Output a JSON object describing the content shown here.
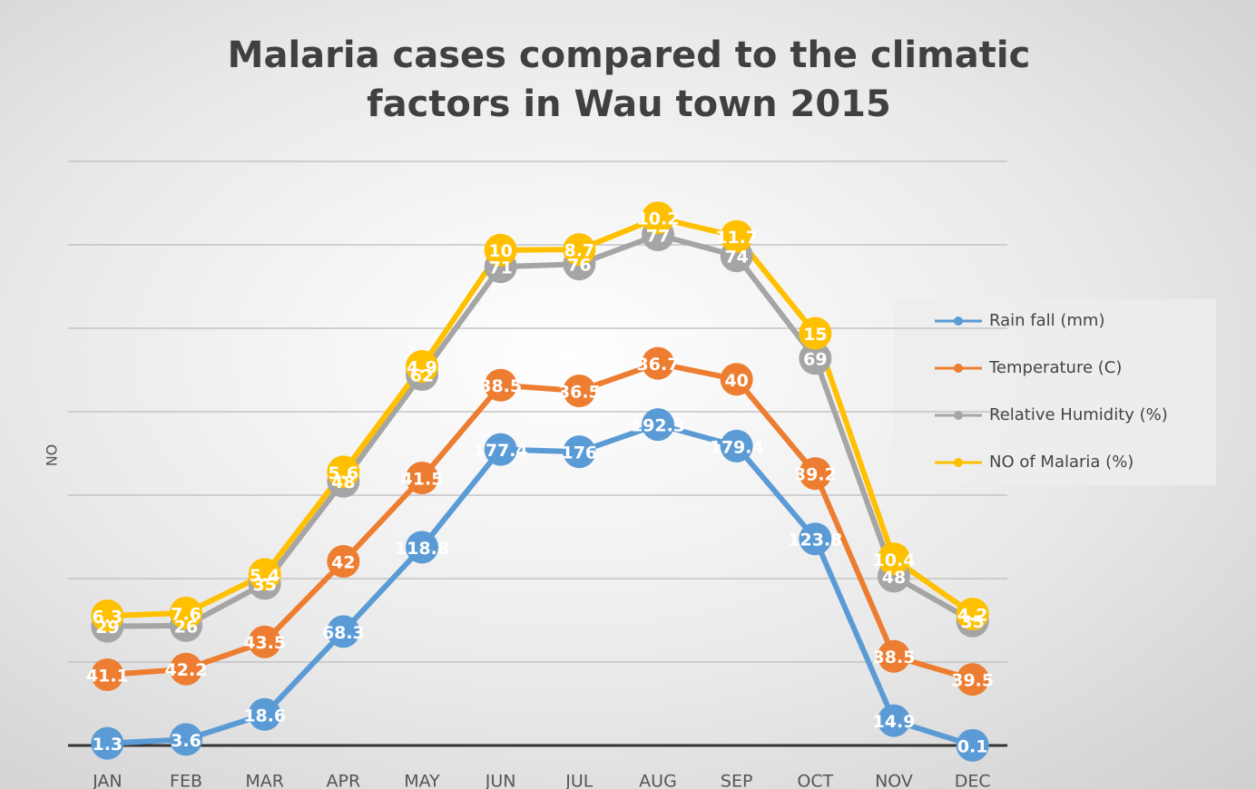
{
  "chart_data": {
    "type": "line",
    "stacked": true,
    "title": "Malaria cases compared to the climatic factors in Wau town 2015",
    "y_label": "NO",
    "categories": [
      "JAN",
      "FEB",
      "MAR",
      "APR",
      "MAY",
      "JUN",
      "JUL",
      "AUG",
      "SEP",
      "OCT",
      "NOV",
      "DEC"
    ],
    "series": [
      {
        "name": "Rain fall (mm)",
        "color": "#5b9bd5",
        "values": [
          1.3,
          3.6,
          18.6,
          68.3,
          118.8,
          177.4,
          176,
          192.3,
          179.4,
          123.8,
          14.9,
          0.1
        ]
      },
      {
        "name": "Temperature (C)",
        "color": "#ed7d31",
        "values": [
          41.1,
          42.2,
          43.5,
          42,
          41.5,
          38.5,
          36.5,
          36.7,
          40,
          39.2,
          38.5,
          39.5
        ]
      },
      {
        "name": "Relative Humidity (%)",
        "color": "#a5a5a5",
        "values": [
          29,
          26,
          35,
          48,
          62,
          71,
          76,
          77,
          74,
          69,
          48,
          35
        ]
      },
      {
        "name": "NO of Malaria (%)",
        "color": "#ffc000",
        "values": [
          6.3,
          7.6,
          5.4,
          5.6,
          4.9,
          10,
          8.7,
          10.2,
          11.7,
          15,
          10.4,
          4.2
        ]
      }
    ],
    "ylim": [
      0,
      350
    ],
    "yticks": [
      0,
      50,
      100,
      150,
      200,
      250,
      300,
      350
    ],
    "grid": true,
    "legend": "right"
  }
}
